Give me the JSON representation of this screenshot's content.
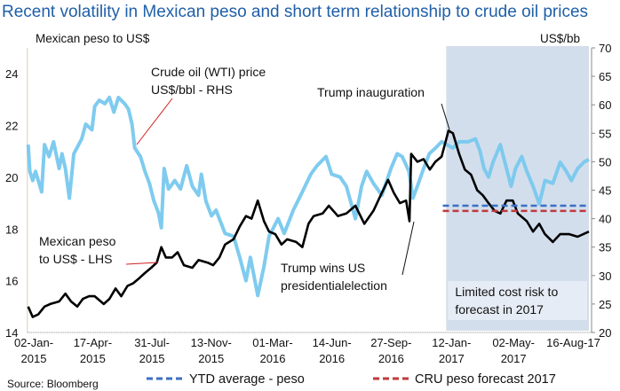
{
  "chart_data": {
    "type": "line",
    "title": "Recent volatility in Mexican peso and short term relationship to crude oil prices",
    "ylabel_left": "Mexican peso to US$",
    "ylabel_right": "US$/bb",
    "ylim_left": [
      14,
      25
    ],
    "yticks_left": [
      14,
      16,
      18,
      20,
      22,
      24
    ],
    "ylim_right": [
      20,
      70
    ],
    "yticks_right": [
      20,
      25,
      30,
      35,
      40,
      45,
      50,
      55,
      60,
      65,
      70
    ],
    "xlim": [
      "2015-01-02",
      "2017-09-22"
    ],
    "xticks": [
      {
        "date": "2015-01-02",
        "lines": [
          "02-Jan-",
          "2015"
        ]
      },
      {
        "date": "2015-04-17",
        "lines": [
          "17-Apr-",
          "2015"
        ]
      },
      {
        "date": "2015-07-31",
        "lines": [
          "31-Jul-",
          "2015"
        ]
      },
      {
        "date": "2015-11-13",
        "lines": [
          "13-Nov-",
          "2015"
        ]
      },
      {
        "date": "2016-03-01",
        "lines": [
          "01-Mar-",
          "2016"
        ]
      },
      {
        "date": "2016-06-14",
        "lines": [
          "14-Jun-",
          "2016"
        ]
      },
      {
        "date": "2016-09-27",
        "lines": [
          "27-Sep-",
          "2016"
        ]
      },
      {
        "date": "2017-01-12",
        "lines": [
          "12-Jan-",
          "2017"
        ]
      },
      {
        "date": "2017-05-02",
        "lines": [
          "02-May-",
          "2017"
        ]
      },
      {
        "date": "2017-08-16",
        "lines": [
          "16-Aug-17"
        ]
      }
    ],
    "grid": false,
    "legend_placement": "bottom",
    "colors": {
      "oil": "#78c8ee",
      "peso": "#000000",
      "ytd": "#3a6fc4",
      "forecast": "#c0393b",
      "shade": "#d3deec",
      "shade_box": "#e6ecf5",
      "title": "#1f5fa8"
    },
    "series": [
      {
        "key": "oil",
        "axis": "right",
        "points": [
          [
            "2015-01-02",
            53
          ],
          [
            "2015-01-05",
            48.3
          ],
          [
            "2015-01-10",
            46.7
          ],
          [
            "2015-01-15",
            48.3
          ],
          [
            "2015-01-26",
            44.7
          ],
          [
            "2015-01-31",
            53
          ],
          [
            "2015-02-08",
            50.9
          ],
          [
            "2015-02-16",
            53.5
          ],
          [
            "2015-02-26",
            48.8
          ],
          [
            "2015-03-03",
            51.4
          ],
          [
            "2015-03-09",
            48.8
          ],
          [
            "2015-03-16",
            43.6
          ],
          [
            "2015-03-24",
            51.4
          ],
          [
            "2015-04-07",
            54
          ],
          [
            "2015-04-14",
            56.6
          ],
          [
            "2015-04-25",
            55.6
          ],
          [
            "2015-04-30",
            59.7
          ],
          [
            "2015-05-08",
            60.8
          ],
          [
            "2015-05-18",
            60.2
          ],
          [
            "2015-05-26",
            61.3
          ],
          [
            "2015-06-03",
            58.7
          ],
          [
            "2015-06-11",
            61.3
          ],
          [
            "2015-06-22",
            60.2
          ],
          [
            "2015-06-29",
            59.2
          ],
          [
            "2015-07-05",
            56.6
          ],
          [
            "2015-07-10",
            52.4
          ],
          [
            "2015-07-20",
            50.9
          ],
          [
            "2015-07-28",
            48.3
          ],
          [
            "2015-08-05",
            46.2
          ],
          [
            "2015-08-13",
            43.1
          ],
          [
            "2015-08-21",
            41
          ],
          [
            "2015-08-26",
            38.4
          ],
          [
            "2015-08-31",
            48.8
          ],
          [
            "2015-09-08",
            45.2
          ],
          [
            "2015-09-19",
            46.7
          ],
          [
            "2015-09-29",
            45.2
          ],
          [
            "2015-10-10",
            49.3
          ],
          [
            "2015-10-20",
            45.7
          ],
          [
            "2015-10-31",
            44.1
          ],
          [
            "2015-11-05",
            47.8
          ],
          [
            "2015-11-13",
            43.1
          ],
          [
            "2015-11-23",
            40.5
          ],
          [
            "2015-12-01",
            41.5
          ],
          [
            "2015-12-17",
            37.4
          ],
          [
            "2016-01-01",
            36.9
          ],
          [
            "2016-01-12",
            33.2
          ],
          [
            "2016-01-23",
            29.1
          ],
          [
            "2016-01-31",
            33.2
          ],
          [
            "2016-02-13",
            26.5
          ],
          [
            "2016-02-24",
            31.6
          ],
          [
            "2016-03-04",
            36.9
          ],
          [
            "2016-03-20",
            40
          ],
          [
            "2016-03-31",
            37.4
          ],
          [
            "2016-04-16",
            41.5
          ],
          [
            "2016-05-02",
            44.7
          ],
          [
            "2016-05-17",
            47.8
          ],
          [
            "2016-05-28",
            49.3
          ],
          [
            "2016-06-13",
            50.9
          ],
          [
            "2016-06-23",
            47.8
          ],
          [
            "2016-07-08",
            47.3
          ],
          [
            "2016-07-19",
            45.7
          ],
          [
            "2016-08-04",
            40
          ],
          [
            "2016-08-15",
            45.7
          ],
          [
            "2016-08-24",
            48.3
          ],
          [
            "2016-09-05",
            46.2
          ],
          [
            "2016-09-20",
            44.1
          ],
          [
            "2016-10-06",
            48.8
          ],
          [
            "2016-10-17",
            51.4
          ],
          [
            "2016-10-26",
            50.9
          ],
          [
            "2016-11-07",
            48.3
          ],
          [
            "2016-11-14",
            43.6
          ],
          [
            "2016-11-22",
            45.7
          ],
          [
            "2016-12-03",
            48.8
          ],
          [
            "2016-12-13",
            51.4
          ],
          [
            "2016-12-24",
            52.4
          ],
          [
            "2017-01-04",
            53.5
          ],
          [
            "2017-01-13",
            53
          ],
          [
            "2017-01-24",
            52.4
          ],
          [
            "2017-02-04",
            53.5
          ],
          [
            "2017-02-20",
            53.5
          ],
          [
            "2017-03-05",
            54
          ],
          [
            "2017-03-13",
            51.9
          ],
          [
            "2017-03-20",
            48.8
          ],
          [
            "2017-03-28",
            47.3
          ],
          [
            "2017-04-05",
            49.9
          ],
          [
            "2017-04-18",
            53
          ],
          [
            "2017-04-26",
            49.9
          ],
          [
            "2017-05-07",
            45.7
          ],
          [
            "2017-05-15",
            48.8
          ],
          [
            "2017-05-26",
            50.9
          ],
          [
            "2017-06-04",
            48.3
          ],
          [
            "2017-06-15",
            45.7
          ],
          [
            "2017-06-26",
            42.6
          ],
          [
            "2017-07-06",
            46.7
          ],
          [
            "2017-07-20",
            46.2
          ],
          [
            "2017-08-02",
            49.9
          ],
          [
            "2017-08-13",
            48.3
          ],
          [
            "2017-08-22",
            46.7
          ],
          [
            "2017-09-02",
            48.8
          ],
          [
            "2017-09-13",
            49.9
          ],
          [
            "2017-09-22",
            50.4
          ]
        ]
      },
      {
        "key": "peso",
        "axis": "left",
        "points": [
          [
            "2015-01-02",
            15
          ],
          [
            "2015-01-10",
            14.6
          ],
          [
            "2015-01-20",
            14.7
          ],
          [
            "2015-01-31",
            15
          ],
          [
            "2015-02-10",
            15.1
          ],
          [
            "2015-02-26",
            15.2
          ],
          [
            "2015-03-09",
            15.5
          ],
          [
            "2015-03-19",
            15.2
          ],
          [
            "2015-03-30",
            15
          ],
          [
            "2015-04-09",
            15.3
          ],
          [
            "2015-04-20",
            15.4
          ],
          [
            "2015-04-30",
            15.4
          ],
          [
            "2015-05-16",
            15.1
          ],
          [
            "2015-05-26",
            15.3
          ],
          [
            "2015-06-06",
            15.7
          ],
          [
            "2015-06-16",
            15.4
          ],
          [
            "2015-06-27",
            15.8
          ],
          [
            "2015-07-07",
            15.9
          ],
          [
            "2015-07-18",
            16.1
          ],
          [
            "2015-07-28",
            16.3
          ],
          [
            "2015-08-08",
            16.5
          ],
          [
            "2015-08-18",
            16.7
          ],
          [
            "2015-08-26",
            17.3
          ],
          [
            "2015-09-03",
            16.9
          ],
          [
            "2015-09-14",
            16.9
          ],
          [
            "2015-09-24",
            17.1
          ],
          [
            "2015-10-05",
            16.6
          ],
          [
            "2015-10-20",
            16.5
          ],
          [
            "2015-10-31",
            16.8
          ],
          [
            "2015-11-16",
            16.7
          ],
          [
            "2015-11-26",
            16.6
          ],
          [
            "2015-12-07",
            16.9
          ],
          [
            "2015-12-17",
            17.4
          ],
          [
            "2016-01-01",
            17.6
          ],
          [
            "2016-01-12",
            18.1
          ],
          [
            "2016-01-23",
            18.5
          ],
          [
            "2016-02-02",
            18.4
          ],
          [
            "2016-02-13",
            19.1
          ],
          [
            "2016-02-24",
            18.3
          ],
          [
            "2016-03-04",
            17.9
          ],
          [
            "2016-03-15",
            17.8
          ],
          [
            "2016-03-26",
            17.4
          ],
          [
            "2016-04-05",
            17.6
          ],
          [
            "2016-04-21",
            17.5
          ],
          [
            "2016-05-02",
            17.3
          ],
          [
            "2016-05-13",
            18.2
          ],
          [
            "2016-05-22",
            18.5
          ],
          [
            "2016-06-07",
            18.6
          ],
          [
            "2016-06-18",
            18.9
          ],
          [
            "2016-07-04",
            18.5
          ],
          [
            "2016-07-19",
            18.6
          ],
          [
            "2016-08-04",
            18.9
          ],
          [
            "2016-08-20",
            18.2
          ],
          [
            "2016-09-05",
            18.7
          ],
          [
            "2016-09-20",
            19.4
          ],
          [
            "2016-10-01",
            19.9
          ],
          [
            "2016-10-11",
            19.4
          ],
          [
            "2016-10-22",
            19
          ],
          [
            "2016-11-02",
            19.1
          ],
          [
            "2016-11-08",
            18.3
          ],
          [
            "2016-11-11",
            20.9
          ],
          [
            "2016-11-22",
            20.6
          ],
          [
            "2016-12-03",
            20.7
          ],
          [
            "2016-12-14",
            20.3
          ],
          [
            "2016-12-24",
            20.6
          ],
          [
            "2017-01-04",
            20.8
          ],
          [
            "2017-01-16",
            21.8
          ],
          [
            "2017-01-24",
            21.7
          ],
          [
            "2017-02-04",
            20.9
          ],
          [
            "2017-02-14",
            20.3
          ],
          [
            "2017-02-25",
            20.1
          ],
          [
            "2017-03-08",
            19.5
          ],
          [
            "2017-03-18",
            19.3
          ],
          [
            "2017-03-28",
            19
          ],
          [
            "2017-04-08",
            18.7
          ],
          [
            "2017-04-18",
            18.6
          ],
          [
            "2017-04-29",
            19.1
          ],
          [
            "2017-05-10",
            19.1
          ],
          [
            "2017-05-19",
            18.6
          ],
          [
            "2017-06-04",
            18.3
          ],
          [
            "2017-06-15",
            17.9
          ],
          [
            "2017-06-26",
            18.2
          ],
          [
            "2017-07-06",
            17.8
          ],
          [
            "2017-07-20",
            17.5
          ],
          [
            "2017-08-02",
            17.8
          ],
          [
            "2017-08-18",
            17.8
          ],
          [
            "2017-09-02",
            17.7
          ],
          [
            "2017-09-22",
            17.9
          ]
        ]
      }
    ],
    "reference_lines": [
      {
        "key": "ytd",
        "value": 18.9,
        "axis": "left",
        "from": "2017-01-06",
        "to": "2017-09-22"
      },
      {
        "key": "forecast",
        "value": 18.7,
        "axis": "left",
        "from": "2017-01-06",
        "to": "2017-09-22"
      }
    ],
    "shaded_period": {
      "from": "2017-01-12",
      "to": "2017-09-22"
    },
    "annotations": {
      "oil": [
        "Crude oil (WTI) price",
        "US$/bbl - RHS"
      ],
      "peso": [
        "Mexican peso",
        "to US$ - LHS"
      ],
      "inauguration": [
        "Trump inauguration"
      ],
      "election": [
        "Trump wins US",
        "presidentialelection"
      ],
      "shade_box": [
        "Limited cost risk to",
        "forecast in 2017"
      ]
    },
    "legend": {
      "ytd": "YTD average - peso",
      "forecast": "CRU peso forecast 2017"
    },
    "source": "Source: Bloomberg"
  }
}
